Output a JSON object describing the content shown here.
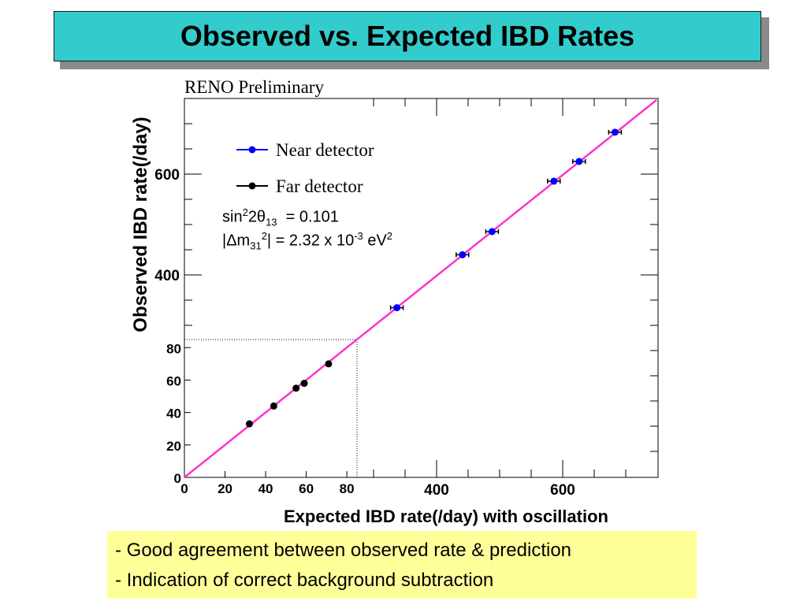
{
  "title": "Observed vs. Expected IBD Rates",
  "notes": [
    "- Good agreement between observed rate & prediction",
    "- Indication of correct background subtraction"
  ],
  "chart_data": {
    "type": "scatter",
    "watermark": "RENO Preliminary",
    "xlabel": "Expected IBD rate(/day) with oscillation",
    "ylabel": "Observed IBD rate(/day)",
    "xlim": [
      0,
      750
    ],
    "ylim": [
      0,
      750
    ],
    "xticks": [
      400,
      600
    ],
    "yticks": [
      400,
      600
    ],
    "grid": false,
    "legend_position": "top-left",
    "series": [
      {
        "name": "Near detector",
        "color": "#0000ff",
        "x": [
          337,
          441,
          488,
          586,
          626,
          683
        ],
        "y": [
          335,
          440,
          486,
          586,
          625,
          683
        ],
        "xerr": 10
      },
      {
        "name": "Far detector",
        "color": "#000000",
        "x": [
          32,
          44,
          55,
          59,
          71
        ],
        "y": [
          33,
          44,
          55,
          58,
          70
        ],
        "xerr": 1
      }
    ],
    "fit_line": {
      "color": "#ff33cc"
    },
    "inset": {
      "xlim": [
        0,
        85
      ],
      "ylim": [
        0,
        85
      ],
      "xticks": [
        0,
        20,
        40,
        60,
        80
      ],
      "yticks": [
        0,
        20,
        40,
        60,
        80
      ]
    },
    "annotation": {
      "line1": {
        "a": "sin",
        "b": "2",
        "c": "2θ",
        "d": "13",
        "e": "  = 0.101"
      },
      "line2": {
        "a": "|Δm",
        "b": "31",
        "c": "2",
        "d": "| = 2.32 x 10",
        "e": "-3",
        "f": " eV",
        "g": "2"
      }
    }
  }
}
